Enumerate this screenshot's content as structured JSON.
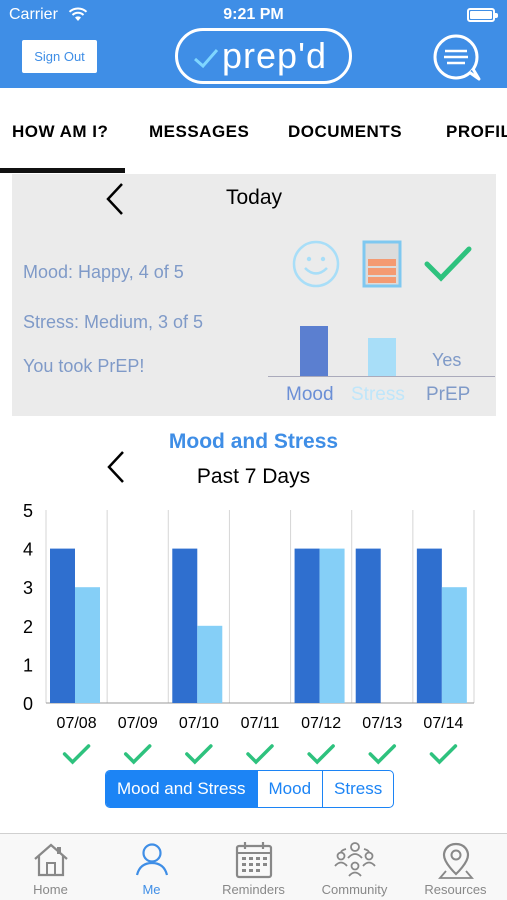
{
  "status_bar": {
    "carrier": "Carrier",
    "time": "9:21 PM"
  },
  "header": {
    "sign_out": "Sign Out",
    "logo_text": "prep'd",
    "chat_icon": "chat-bubble-icon"
  },
  "tabs": [
    {
      "label": "HOW AM I?",
      "active": true
    },
    {
      "label": "MESSAGES"
    },
    {
      "label": "DOCUMENTS"
    },
    {
      "label": "PROFILE"
    }
  ],
  "today": {
    "title": "Today",
    "mood_text": "Mood: Happy, 4 of 5",
    "stress_text": "Stress: Medium, 3 of 5",
    "prep_text": "You took PrEP!",
    "mood_icon": "smiley-face-icon",
    "stress_icon": "stress-level-icon",
    "prep_icon": "checkmark-icon",
    "mini_chart": {
      "mood_value": 4,
      "stress_value": 3,
      "prep_value": "Yes",
      "labels": [
        "Mood",
        "Stress",
        "PrEP"
      ]
    }
  },
  "chart": {
    "title": "Mood and Stress",
    "subtitle": "Past 7 Days",
    "prep_taken_icon": "checkmark-icon"
  },
  "chart_data": {
    "type": "bar",
    "categories": [
      "07/08",
      "07/09",
      "07/10",
      "07/11",
      "07/12",
      "07/13",
      "07/14"
    ],
    "series": [
      {
        "values": [
          4,
          0,
          4,
          0,
          4,
          4,
          4
        ],
        "color": "#2f6fcf"
      },
      {
        "values": [
          3,
          0,
          2,
          0,
          4,
          0,
          3
        ],
        "color": "#85cff7"
      }
    ],
    "yticks": [
      "0",
      "1",
      "2",
      "3",
      "4",
      "5"
    ],
    "ylim": [
      0,
      5
    ],
    "prep_taken": [
      true,
      true,
      true,
      true,
      true,
      true,
      true
    ],
    "grid": "vertical"
  },
  "segmented": {
    "options": [
      "Mood and Stress",
      "Mood",
      "Stress"
    ],
    "selected": "Mood and Stress"
  },
  "bottom_tabs": [
    {
      "label": "Home",
      "icon": "home-icon"
    },
    {
      "label": "Me",
      "icon": "person-icon",
      "active": true
    },
    {
      "label": "Reminders",
      "icon": "calendar-icon"
    },
    {
      "label": "Community",
      "icon": "community-icon"
    },
    {
      "label": "Resources",
      "icon": "location-pin-icon"
    }
  ],
  "colors": {
    "brand_blue": "#3f8ee6",
    "mood_bar": "#2f6fcf",
    "stress_bar": "#85cff7",
    "check_green": "#2ec27e",
    "stat_text": "#7f9ac8",
    "segment_blue": "#1c84f5"
  }
}
